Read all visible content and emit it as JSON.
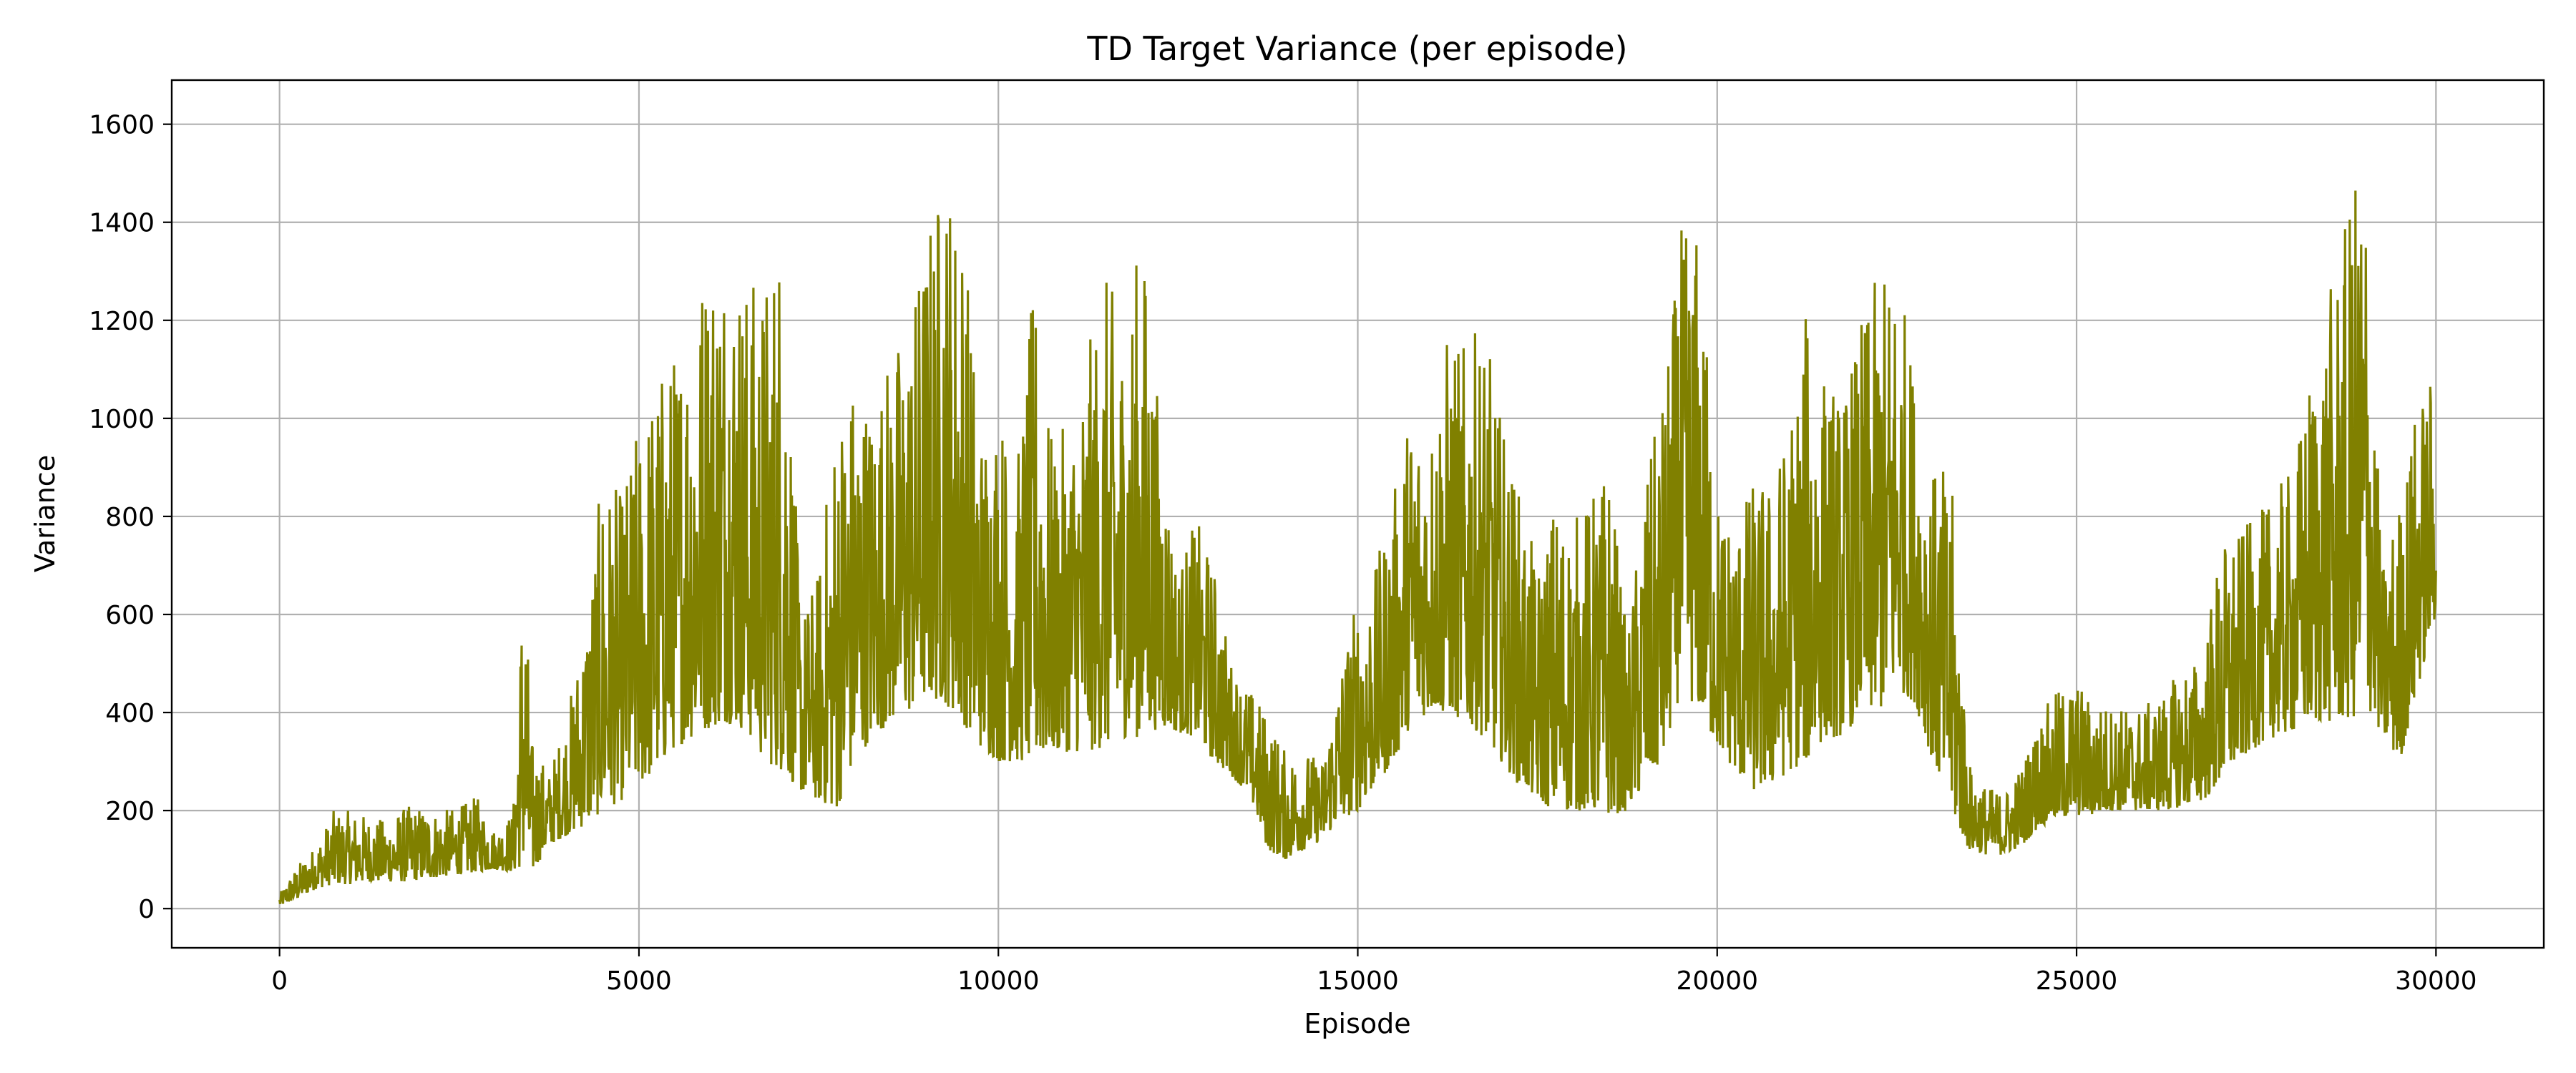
{
  "chart_data": {
    "type": "line",
    "title": "TD Target Variance (per episode)",
    "xlabel": "Episode",
    "ylabel": "Variance",
    "xlim": [
      -1500,
      31500
    ],
    "ylim": [
      -80,
      1690
    ],
    "xticks": [
      0,
      5000,
      10000,
      15000,
      20000,
      25000,
      30000
    ],
    "yticks": [
      0,
      200,
      400,
      600,
      800,
      1000,
      1200,
      1400,
      1600
    ],
    "grid": true,
    "legend": "none",
    "line_color": "#808000",
    "series": [
      {
        "envelope_x": [
          0,
          250,
          500,
          750,
          1000,
          1250,
          1500,
          1750,
          2000,
          2250,
          2500,
          2750,
          3000,
          3250,
          3400,
          3500,
          3750,
          4000,
          4250,
          4500,
          4750,
          5000,
          5250,
          5500,
          5750,
          6000,
          6250,
          6500,
          6750,
          7000,
          7250,
          7500,
          7750,
          8000,
          8250,
          8500,
          8750,
          9000,
          9250,
          9500,
          9750,
          10000,
          10250,
          10500,
          10750,
          11000,
          11250,
          11500,
          11750,
          12000,
          12250,
          12500,
          12750,
          13000,
          13250,
          13500,
          13750,
          14000,
          14250,
          14500,
          14750,
          15000,
          15250,
          15500,
          15750,
          16000,
          16250,
          16500,
          16750,
          17000,
          17250,
          17500,
          17750,
          18000,
          18250,
          18500,
          18750,
          19000,
          19250,
          19500,
          19750,
          20000,
          20250,
          20500,
          20750,
          21000,
          21250,
          21500,
          21750,
          22000,
          22250,
          22500,
          22750,
          23000,
          23250,
          23500,
          23750,
          24000,
          24250,
          24500,
          24750,
          25000,
          25250,
          25500,
          25750,
          26000,
          26250,
          26500,
          26750,
          27000,
          27250,
          27500,
          27750,
          28000,
          28250,
          28500,
          28750,
          29000,
          29100,
          29250,
          29500,
          29750,
          30000
        ],
        "envelope_low": [
          5,
          20,
          40,
          50,
          50,
          55,
          55,
          55,
          60,
          65,
          70,
          75,
          80,
          75,
          90,
          70,
          130,
          150,
          170,
          200,
          220,
          250,
          280,
          330,
          350,
          370,
          380,
          360,
          300,
          280,
          240,
          220,
          200,
          300,
          350,
          380,
          400,
          430,
          420,
          380,
          330,
          300,
          300,
          300,
          320,
          320,
          320,
          330,
          350,
          350,
          370,
          360,
          350,
          300,
          270,
          230,
          120,
          100,
          120,
          140,
          180,
          200,
          250,
          300,
          380,
          400,
          400,
          380,
          350,
          300,
          250,
          220,
          200,
          200,
          200,
          190,
          200,
          250,
          300,
          450,
          400,
          330,
          280,
          240,
          250,
          280,
          300,
          350,
          350,
          400,
          400,
          450,
          420,
          300,
          200,
          120,
          110,
          110,
          130,
          170,
          180,
          190,
          190,
          200,
          200,
          200,
          200,
          210,
          220,
          250,
          300,
          330,
          350,
          360,
          380,
          380,
          380,
          400,
          400,
          350,
          300,
          450,
          600
        ],
        "envelope_high": [
          30,
          90,
          130,
          200,
          200,
          190,
          180,
          210,
          210,
          200,
          210,
          230,
          160,
          200,
          770,
          350,
          280,
          400,
          600,
          900,
          850,
          1000,
          1100,
          1150,
          1280,
          1380,
          1400,
          1300,
          1300,
          1450,
          600,
          700,
          1050,
          1100,
          1050,
          1150,
          1200,
          1400,
          1530,
          1440,
          1000,
          1050,
          900,
          1290,
          950,
          1000,
          1150,
          1300,
          1200,
          1400,
          1000,
          700,
          800,
          700,
          500,
          450,
          400,
          320,
          330,
          300,
          500,
          650,
          700,
          850,
          1050,
          1000,
          1180,
          1150,
          1200,
          1000,
          850,
          700,
          850,
          800,
          850,
          920,
          550,
          880,
          1050,
          1390,
          1390,
          850,
          800,
          880,
          880,
          1000,
          1230,
          1100,
          1050,
          1200,
          1300,
          1340,
          1100,
          900,
          900,
          300,
          250,
          240,
          300,
          400,
          450,
          470,
          420,
          420,
          410,
          420,
          450,
          500,
          520,
          750,
          770,
          800,
          850,
          900,
          1100,
          1250,
          1400,
          1610,
          1250,
          700,
          850,
          1050,
          1100
        ]
      }
    ]
  }
}
